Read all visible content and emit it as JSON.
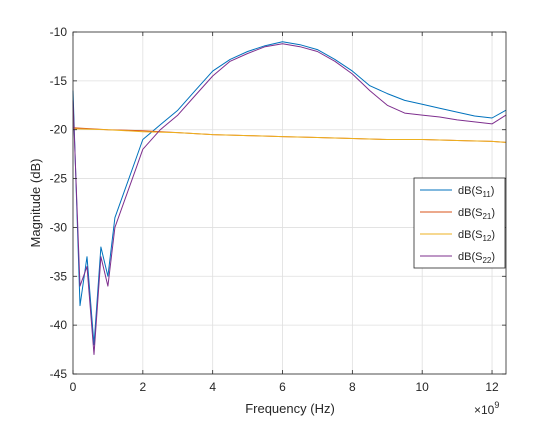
{
  "chart_data": {
    "type": "line",
    "xlabel": "Frequency (Hz)",
    "ylabel": "Magnitude (dB)",
    "x_exponent_label": "×10",
    "x_exponent": "9",
    "xlim": [
      0,
      12.4
    ],
    "ylim": [
      -45,
      -10
    ],
    "xticks": [
      "0",
      "2",
      "4",
      "6",
      "8",
      "10",
      "12"
    ],
    "yticks": [
      "-10",
      "-15",
      "-20",
      "-25",
      "-30",
      "-35",
      "-40",
      "-45"
    ],
    "grid": true,
    "legend_position": "right",
    "series": [
      {
        "name": "dB(S11)",
        "legend": {
          "prefix": "dB(S",
          "sub": "11",
          "suffix": ")"
        },
        "color": "#0072BD",
        "x": [
          0.0,
          0.2,
          0.4,
          0.6,
          0.8,
          1.0,
          1.2,
          1.5,
          1.8,
          2.0,
          2.5,
          3.0,
          3.5,
          4.0,
          4.5,
          5.0,
          5.5,
          6.0,
          6.5,
          7.0,
          7.5,
          8.0,
          8.5,
          9.0,
          9.5,
          10.0,
          10.5,
          11.0,
          11.5,
          12.0,
          12.4
        ],
        "y": [
          -16,
          -38,
          -33,
          -42,
          -32,
          -35,
          -29,
          -26,
          -23,
          -21,
          -19.5,
          -18,
          -16,
          -14,
          -12.8,
          -12,
          -11.4,
          -11,
          -11.3,
          -11.8,
          -12.8,
          -14,
          -15.5,
          -16.3,
          -17,
          -17.4,
          -17.8,
          -18.2,
          -18.6,
          -18.8,
          -18
        ]
      },
      {
        "name": "dB(S21)",
        "legend": {
          "prefix": "dB(S",
          "sub": "21",
          "suffix": ")"
        },
        "color": "#D95319",
        "x": [
          0.0,
          1.0,
          2.0,
          3.0,
          4.0,
          5.0,
          6.0,
          7.0,
          8.0,
          9.0,
          10.0,
          11.0,
          12.0,
          12.4
        ],
        "y": [
          -19.8,
          -20.0,
          -20.1,
          -20.3,
          -20.5,
          -20.6,
          -20.7,
          -20.8,
          -20.9,
          -21.0,
          -21.0,
          -21.1,
          -21.2,
          -21.3
        ]
      },
      {
        "name": "dB(S12)",
        "legend": {
          "prefix": "dB(S",
          "sub": "12",
          "suffix": ")"
        },
        "color": "#EDB120",
        "x": [
          0.0,
          1.0,
          2.0,
          3.0,
          4.0,
          5.0,
          6.0,
          7.0,
          8.0,
          9.0,
          10.0,
          11.0,
          12.0,
          12.4
        ],
        "y": [
          -19.9,
          -20.0,
          -20.2,
          -20.3,
          -20.5,
          -20.6,
          -20.7,
          -20.8,
          -20.9,
          -21.0,
          -21.0,
          -21.1,
          -21.2,
          -21.3
        ]
      },
      {
        "name": "dB(S22)",
        "legend": {
          "prefix": "dB(S",
          "sub": "22",
          "suffix": ")"
        },
        "color": "#7E2F8E",
        "x": [
          0.0,
          0.2,
          0.4,
          0.6,
          0.8,
          1.0,
          1.2,
          1.5,
          1.8,
          2.0,
          2.5,
          3.0,
          3.5,
          4.0,
          4.5,
          5.0,
          5.5,
          6.0,
          6.5,
          7.0,
          7.5,
          8.0,
          8.5,
          9.0,
          9.5,
          10.0,
          10.5,
          11.0,
          11.5,
          12.0,
          12.4
        ],
        "y": [
          -17,
          -36,
          -34,
          -43,
          -33,
          -36,
          -30,
          -27,
          -24,
          -22,
          -20,
          -18.5,
          -16.5,
          -14.5,
          -13,
          -12.2,
          -11.5,
          -11.2,
          -11.5,
          -12,
          -13,
          -14.3,
          -16,
          -17.5,
          -18.3,
          -18.5,
          -18.7,
          -19,
          -19.2,
          -19.4,
          -18.5
        ]
      }
    ]
  }
}
